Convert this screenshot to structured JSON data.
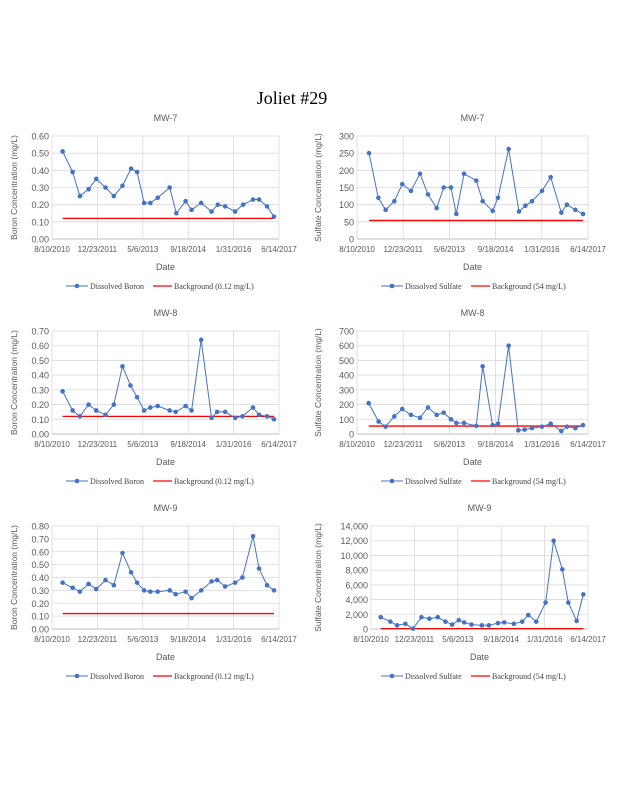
{
  "page": {
    "title": "Joliet #29"
  },
  "colors": {
    "series": "#4472C4",
    "background": "#FF0000",
    "grid": "#D9D9D9"
  },
  "chart_data": [
    {
      "type": "line",
      "title": "MW-7",
      "xlabel": "Date",
      "ylabel": "Boron Concentration (mg/L)",
      "x_unit": "days since 8/10/2010",
      "xlim": [
        0,
        2500
      ],
      "xticks": [
        0,
        500,
        1000,
        1500,
        2000,
        2500
      ],
      "xtick_labels": [
        "8/10/2010",
        "12/23/2011",
        "5/6/2013",
        "9/18/2014",
        "1/31/2016",
        "6/14/2017"
      ],
      "ylim": [
        0,
        0.6
      ],
      "yticks": [
        0,
        0.1,
        0.2,
        0.3,
        0.4,
        0.5,
        0.6
      ],
      "ytick_labels": [
        "0.00",
        "0.10",
        "0.20",
        "0.30",
        "0.40",
        "0.50",
        "0.60"
      ],
      "series": [
        {
          "name": "Dissolved Boron",
          "x": [
            117,
            227,
            307,
            403,
            487,
            589,
            681,
            776,
            871,
            937,
            1014,
            1083,
            1164,
            1296,
            1369,
            1471,
            1537,
            1643,
            1757,
            1826,
            1907,
            2017,
            2105,
            2214,
            2280,
            2368,
            2445
          ],
          "y": [
            0.51,
            0.39,
            0.25,
            0.29,
            0.35,
            0.3,
            0.25,
            0.31,
            0.41,
            0.39,
            0.21,
            0.21,
            0.24,
            0.3,
            0.15,
            0.22,
            0.17,
            0.21,
            0.16,
            0.2,
            0.19,
            0.16,
            0.2,
            0.23,
            0.23,
            0.19,
            0.13
          ]
        }
      ],
      "background": {
        "name": "Background  (0.12 mg/L)",
        "value": 0.12
      },
      "legend": "bottom"
    },
    {
      "type": "line",
      "title": "MW-7",
      "xlabel": "Date",
      "ylabel": "Sulfate Concentration (mg/L)",
      "x_unit": "days since 8/10/2010",
      "xlim": [
        0,
        2500
      ],
      "xticks": [
        0,
        500,
        1000,
        1500,
        2000,
        2500
      ],
      "xtick_labels": [
        "8/10/2010",
        "12/23/2011",
        "5/6/2013",
        "9/18/2014",
        "1/31/2016",
        "6/14/2017"
      ],
      "ylim": [
        0,
        300
      ],
      "yticks": [
        0,
        50,
        100,
        150,
        200,
        250,
        300
      ],
      "ytick_labels": [
        "0",
        "50",
        "100",
        "150",
        "200",
        "250",
        "300"
      ],
      "series": [
        {
          "name": "Dissolved Sulfate",
          "x": [
            130,
            231,
            310,
            404,
            490,
            584,
            682,
            768,
            862,
            938,
            1017,
            1075,
            1158,
            1291,
            1360,
            1468,
            1526,
            1641,
            1753,
            1822,
            1894,
            2002,
            2096,
            2211,
            2272,
            2363,
            2446
          ],
          "y": [
            250,
            120,
            85,
            110,
            160,
            140,
            190,
            130,
            90,
            150,
            150,
            73,
            190,
            170,
            110,
            82,
            120,
            262,
            80,
            97,
            110,
            140,
            180,
            77,
            100,
            85,
            73
          ]
        }
      ],
      "background": {
        "name": "Background  (54 mg/L)",
        "value": 54
      },
      "legend": "bottom"
    },
    {
      "type": "line",
      "title": "MW-8",
      "xlabel": "Date",
      "ylabel": "Boron Concentration (mg/L)",
      "x_unit": "days since 8/10/2010",
      "xlim": [
        0,
        2500
      ],
      "xticks": [
        0,
        500,
        1000,
        1500,
        2000,
        2500
      ],
      "xtick_labels": [
        "8/10/2010",
        "12/23/2011",
        "5/6/2013",
        "9/18/2014",
        "1/31/2016",
        "6/14/2017"
      ],
      "ylim": [
        0,
        0.7
      ],
      "yticks": [
        0,
        0.1,
        0.2,
        0.3,
        0.4,
        0.5,
        0.6,
        0.7
      ],
      "ytick_labels": [
        "0.00",
        "0.10",
        "0.20",
        "0.30",
        "0.40",
        "0.50",
        "0.60",
        "0.70"
      ],
      "series": [
        {
          "name": "Dissolved Boron",
          "x": [
            117,
            227,
            307,
            403,
            487,
            589,
            681,
            776,
            864,
            937,
            1014,
            1083,
            1164,
            1296,
            1362,
            1471,
            1537,
            1643,
            1757,
            1819,
            1907,
            2017,
            2097,
            2214,
            2280,
            2368,
            2445
          ],
          "y": [
            0.29,
            0.16,
            0.12,
            0.2,
            0.16,
            0.13,
            0.2,
            0.46,
            0.33,
            0.25,
            0.16,
            0.18,
            0.19,
            0.16,
            0.15,
            0.19,
            0.16,
            0.64,
            0.11,
            0.15,
            0.15,
            0.11,
            0.12,
            0.18,
            0.13,
            0.12,
            0.1
          ]
        }
      ],
      "background": {
        "name": "Background  (0.12 mg/L)",
        "value": 0.12
      },
      "legend": "bottom"
    },
    {
      "type": "line",
      "title": "MW-8",
      "xlabel": "Date",
      "ylabel": "Sulfate Concentration (mg/L)",
      "x_unit": "days since 8/10/2010",
      "xlim": [
        0,
        2500
      ],
      "xticks": [
        0,
        500,
        1000,
        1500,
        2000,
        2500
      ],
      "xtick_labels": [
        "8/10/2010",
        "12/23/2011",
        "5/6/2013",
        "9/18/2014",
        "1/31/2016",
        "6/14/2017"
      ],
      "ylim": [
        0,
        700
      ],
      "yticks": [
        0,
        100,
        200,
        300,
        400,
        500,
        600,
        700
      ],
      "ytick_labels": [
        "0",
        "100",
        "200",
        "300",
        "400",
        "500",
        "600",
        "700"
      ],
      "series": [
        {
          "name": "Dissolved Sulfate",
          "x": [
            126,
            234,
            310,
            404,
            490,
            584,
            682,
            768,
            862,
            938,
            1017,
            1075,
            1158,
            1291,
            1360,
            1468,
            1526,
            1641,
            1746,
            1814,
            1894,
            2002,
            2096,
            2211,
            2272,
            2363,
            2446
          ],
          "y": [
            210,
            85,
            50,
            120,
            170,
            130,
            110,
            180,
            130,
            145,
            100,
            75,
            75,
            55,
            460,
            60,
            70,
            600,
            25,
            30,
            40,
            50,
            70,
            20,
            50,
            40,
            60
          ]
        }
      ],
      "background": {
        "name": "Background  (54 mg/L)",
        "value": 54
      },
      "legend": "bottom"
    },
    {
      "type": "line",
      "title": "MW-9",
      "xlabel": "Date",
      "ylabel": "Boron Concentration (mg/L)",
      "x_unit": "days since 8/10/2010",
      "xlim": [
        0,
        2500
      ],
      "xticks": [
        0,
        500,
        1000,
        1500,
        2000,
        2500
      ],
      "xtick_labels": [
        "8/10/2010",
        "12/23/2011",
        "5/6/2013",
        "9/18/2014",
        "1/31/2016",
        "6/14/2017"
      ],
      "ylim": [
        0,
        0.8
      ],
      "yticks": [
        0,
        0.1,
        0.2,
        0.3,
        0.4,
        0.5,
        0.6,
        0.7,
        0.8
      ],
      "ytick_labels": [
        "0.00",
        "0.10",
        "0.20",
        "0.30",
        "0.40",
        "0.50",
        "0.60",
        "0.70",
        "0.80"
      ],
      "series": [
        {
          "name": "Dissolved Boron",
          "x": [
            117,
            227,
            307,
            403,
            487,
            589,
            681,
            776,
            871,
            937,
            1014,
            1083,
            1164,
            1296,
            1362,
            1471,
            1537,
            1643,
            1757,
            1819,
            1907,
            2017,
            2097,
            2214,
            2280,
            2368,
            2445
          ],
          "y": [
            0.36,
            0.32,
            0.29,
            0.35,
            0.31,
            0.38,
            0.34,
            0.59,
            0.44,
            0.36,
            0.3,
            0.29,
            0.29,
            0.3,
            0.27,
            0.29,
            0.24,
            0.3,
            0.37,
            0.38,
            0.33,
            0.36,
            0.4,
            0.72,
            0.47,
            0.34,
            0.3
          ]
        }
      ],
      "background": {
        "name": "Background  (0.12 mg/L)",
        "value": 0.12
      },
      "legend": "bottom"
    },
    {
      "type": "line",
      "title": "MW-9",
      "xlabel": "Date",
      "ylabel": "Sulfate Concentration (mg/L)",
      "x_unit": "days since 8/10/2010",
      "xlim": [
        0,
        2500
      ],
      "xticks": [
        0,
        500,
        1000,
        1500,
        2000,
        2500
      ],
      "xtick_labels": [
        "8/10/2010",
        "12/23/2011",
        "5/6/2013",
        "9/18/2014",
        "1/31/2016",
        "6/14/2017"
      ],
      "ylim": [
        0,
        14000
      ],
      "yticks": [
        0,
        2000,
        4000,
        6000,
        8000,
        10000,
        12000,
        14000
      ],
      "ytick_labels": [
        "0",
        "2,000",
        "4,000",
        "6,000",
        "8,000",
        "10,000",
        "12,000",
        "14,000"
      ],
      "series": [
        {
          "name": "Dissolved Sulfate",
          "x": [
            112,
            223,
            300,
            396,
            485,
            581,
            673,
            769,
            858,
            935,
            1011,
            1073,
            1158,
            1277,
            1358,
            1462,
            1535,
            1646,
            1742,
            1812,
            1904,
            2011,
            2104,
            2204,
            2273,
            2369,
            2446
          ],
          "y": [
            1600,
            1000,
            500,
            700,
            50,
            1600,
            1400,
            1600,
            1000,
            600,
            1200,
            900,
            600,
            500,
            500,
            800,
            900,
            700,
            1000,
            1900,
            1000,
            3600,
            12000,
            8100,
            3600,
            1100,
            4700
          ]
        }
      ],
      "background": {
        "name": "Background  (54 mg/L)",
        "value": 54
      },
      "legend": "bottom"
    }
  ]
}
